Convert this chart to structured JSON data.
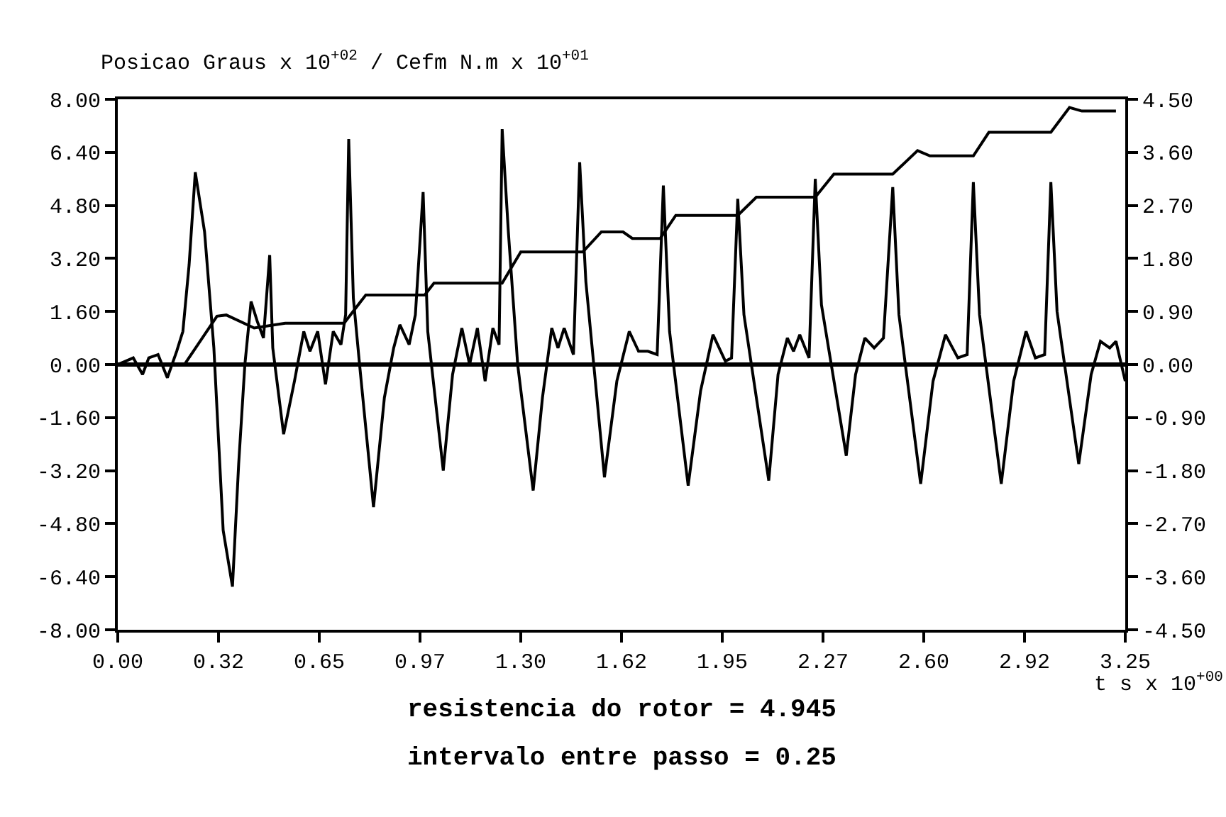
{
  "chart_data": {
    "type": "line",
    "ylabel": "Posicao Graus x 10$^{+02}$ / Cefm N.m x 10$^{+01}$",
    "xlabel": "t s x 10$^{+00}$",
    "annotations": [
      "resistencia do rotor = 4.945",
      "intervalo entre passo = 0.25"
    ],
    "series": [
      {
        "color": "#000000",
        "axis": "y",
        "x": [
          0,
          0.05,
          0.08,
          0.1,
          0.13,
          0.16,
          0.19,
          0.21,
          0.23,
          0.25,
          0.28,
          0.31,
          0.34,
          0.37,
          0.39,
          0.41,
          0.43,
          0.45,
          0.47,
          0.49,
          0.5,
          0.535,
          0.57,
          0.6,
          0.62,
          0.645,
          0.67,
          0.695,
          0.72,
          0.735,
          0.745,
          0.76,
          0.78,
          0.825,
          0.86,
          0.89,
          0.91,
          0.94,
          0.96,
          0.985,
          1.0,
          1.05,
          1.08,
          1.11,
          1.135,
          1.16,
          1.185,
          1.21,
          1.23,
          1.24,
          1.26,
          1.29,
          1.34,
          1.37,
          1.4,
          1.42,
          1.44,
          1.47,
          1.49,
          1.51,
          1.57,
          1.61,
          1.65,
          1.68,
          1.71,
          1.74,
          1.76,
          1.78,
          1.84,
          1.88,
          1.92,
          1.96,
          1.98,
          2.0,
          2.02,
          2.1,
          2.13,
          2.16,
          2.18,
          2.2,
          2.23,
          2.25,
          2.27,
          2.35,
          2.38,
          2.41,
          2.44,
          2.47,
          2.5,
          2.52,
          2.59,
          2.63,
          2.67,
          2.71,
          2.74,
          2.76,
          2.78,
          2.85,
          2.89,
          2.93,
          2.96,
          2.99,
          3.01,
          3.03,
          3.1,
          3.14,
          3.17,
          3.2,
          3.22,
          3.25
        ],
        "values": [
          0,
          0.2,
          -0.3,
          0.2,
          0.3,
          -0.4,
          0.4,
          1.0,
          3.0,
          5.8,
          4.0,
          0.5,
          -5.0,
          -6.7,
          -3.0,
          0,
          1.9,
          1.3,
          0.8,
          3.3,
          0.5,
          -2.1,
          -0.5,
          1.0,
          0.4,
          1.0,
          -0.6,
          1.0,
          0.6,
          1.5,
          6.8,
          2.0,
          0,
          -4.3,
          -1.0,
          0.5,
          1.2,
          0.6,
          1.5,
          5.2,
          1.0,
          -3.2,
          -0.3,
          1.1,
          0,
          1.1,
          -0.5,
          1.1,
          0.6,
          7.1,
          4.0,
          0,
          -3.8,
          -1.0,
          1.1,
          0.5,
          1.1,
          0.3,
          6.1,
          2.5,
          -3.4,
          -0.5,
          1.0,
          0.4,
          0.4,
          0.3,
          5.4,
          1.0,
          -3.65,
          -0.8,
          0.9,
          0.1,
          0.2,
          5.0,
          1.5,
          -3.5,
          -0.3,
          0.8,
          0.4,
          0.9,
          0.2,
          5.6,
          1.8,
          -2.75,
          -0.3,
          0.8,
          0.5,
          0.8,
          5.35,
          1.5,
          -3.6,
          -0.5,
          0.9,
          0.2,
          0.3,
          5.5,
          1.5,
          -3.6,
          -0.5,
          1.0,
          0.2,
          0.3,
          5.5,
          1.6,
          -3.0,
          -0.3,
          0.7,
          0.5,
          0.7,
          -0.5
        ]
      },
      {
        "color": "#000000",
        "axis": "y2",
        "x": [
          0,
          0.215,
          0.32,
          0.35,
          0.44,
          0.54,
          0.73,
          0.8,
          0.99,
          1.02,
          1.24,
          1.3,
          1.5,
          1.56,
          1.63,
          1.66,
          1.75,
          1.8,
          2.0,
          2.06,
          2.25,
          2.31,
          2.5,
          2.58,
          2.62,
          2.76,
          2.81,
          3.01,
          3.07,
          3.11,
          3.22
        ],
        "values": [
          0,
          0,
          0.82,
          0.84,
          0.62,
          0.7,
          0.7,
          1.18,
          1.18,
          1.38,
          1.38,
          1.91,
          1.91,
          2.25,
          2.25,
          2.14,
          2.14,
          2.53,
          2.53,
          2.84,
          2.84,
          3.23,
          3.23,
          3.63,
          3.54,
          3.54,
          3.94,
          3.94,
          4.36,
          4.3,
          4.3
        ]
      }
    ],
    "xlim": [
      0,
      3.25
    ],
    "xticks": [
      {
        "value": 0,
        "label": "0.00"
      },
      {
        "value": 0.325,
        "label": "0.32"
      },
      {
        "value": 0.65,
        "label": "0.65"
      },
      {
        "value": 0.975,
        "label": "0.97"
      },
      {
        "value": 1.3,
        "label": "1.30"
      },
      {
        "value": 1.625,
        "label": "1.62"
      },
      {
        "value": 1.95,
        "label": "1.95"
      },
      {
        "value": 2.275,
        "label": "2.27"
      },
      {
        "value": 2.6,
        "label": "2.60"
      },
      {
        "value": 2.925,
        "label": "2.92"
      },
      {
        "value": 3.25,
        "label": "3.25"
      }
    ],
    "ylim": [
      -8,
      8
    ],
    "yticks": [
      {
        "value": -8,
        "label": "-8.00"
      },
      {
        "value": -6.4,
        "label": "-6.40"
      },
      {
        "value": -4.8,
        "label": "-4.80"
      },
      {
        "value": -3.2,
        "label": "-3.20"
      },
      {
        "value": -1.6,
        "label": "-1.60"
      },
      {
        "value": 0,
        "label": "0.00"
      },
      {
        "value": 1.6,
        "label": "1.60"
      },
      {
        "value": 3.2,
        "label": "3.20"
      },
      {
        "value": 4.8,
        "label": "4.80"
      },
      {
        "value": 6.4,
        "label": "6.40"
      },
      {
        "value": 8,
        "label": "8.00"
      }
    ],
    "y2lim": [
      -4.5,
      4.5
    ],
    "y2ticks": [
      {
        "value": -4.5,
        "label": "-4.50"
      },
      {
        "value": -3.6,
        "label": "-3.60"
      },
      {
        "value": -2.7,
        "label": "-2.70"
      },
      {
        "value": -1.8,
        "label": "-1.80"
      },
      {
        "value": -0.9,
        "label": "-0.90"
      },
      {
        "value": 0,
        "label": "0.00"
      },
      {
        "value": 0.9,
        "label": "0.90"
      },
      {
        "value": 1.8,
        "label": "1.80"
      },
      {
        "value": 2.7,
        "label": "2.70"
      },
      {
        "value": 3.6,
        "label": "3.60"
      },
      {
        "value": 4.5,
        "label": "4.50"
      }
    ],
    "ref_lines": [
      {
        "axis": "y",
        "value": 0,
        "color": "#000000"
      }
    ],
    "marker": "none",
    "line_style": "solid"
  }
}
